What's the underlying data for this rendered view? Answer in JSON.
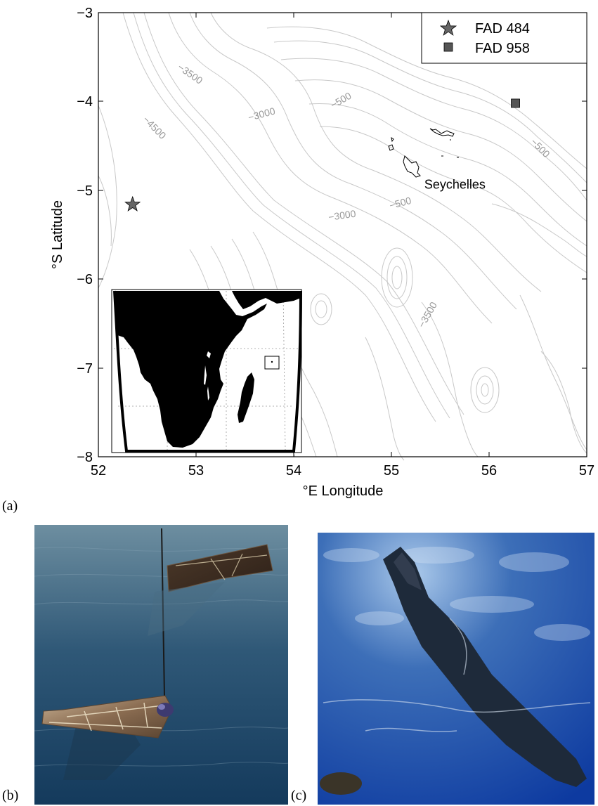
{
  "panels": {
    "a": "(a)",
    "b": "(b)",
    "c": "(c)"
  },
  "map": {
    "xlabel": "°E Longitude",
    "ylabel": "°S Latitude",
    "xlim": [
      52,
      57
    ],
    "ylim": [
      -8,
      -3
    ],
    "xticks": [
      "52",
      "53",
      "54",
      "55",
      "56",
      "57"
    ],
    "yticks": [
      "−3",
      "−4",
      "−5",
      "−6",
      "−7",
      "−8"
    ],
    "legend": [
      {
        "label": "FAD 484",
        "marker": "star",
        "color": "#666666"
      },
      {
        "label": "FAD 958",
        "marker": "square",
        "color": "#555555"
      }
    ],
    "points": [
      {
        "name": "FAD 484",
        "lon": 52.35,
        "lat": -5.16
      },
      {
        "name": "FAD 958",
        "lon": 56.27,
        "lat": -4.02
      }
    ],
    "place_label": {
      "text": "Seychelles",
      "lon": 55.65,
      "lat": -4.98
    },
    "contour_labels": [
      {
        "text": "−3500",
        "lon": 52.92,
        "lat": -3.72,
        "angle": 35
      },
      {
        "text": "−4500",
        "lon": 52.55,
        "lat": -4.32,
        "angle": 45
      },
      {
        "text": "−3000",
        "lon": 53.68,
        "lat": -4.18,
        "angle": -15
      },
      {
        "text": "−500",
        "lon": 54.5,
        "lat": -4.02,
        "angle": -30
      },
      {
        "text": "−500",
        "lon": 56.5,
        "lat": -4.55,
        "angle": 45
      },
      {
        "text": "−500",
        "lon": 55.1,
        "lat": -5.18,
        "angle": -15
      },
      {
        "text": "−3000",
        "lon": 54.5,
        "lat": -5.32,
        "angle": -8
      },
      {
        "text": "−3500",
        "lon": 55.4,
        "lat": -6.42,
        "angle": -60
      }
    ],
    "line_color": "#000000",
    "contour_color": "#c8c8c8",
    "contour_label_color": "#999999"
  }
}
